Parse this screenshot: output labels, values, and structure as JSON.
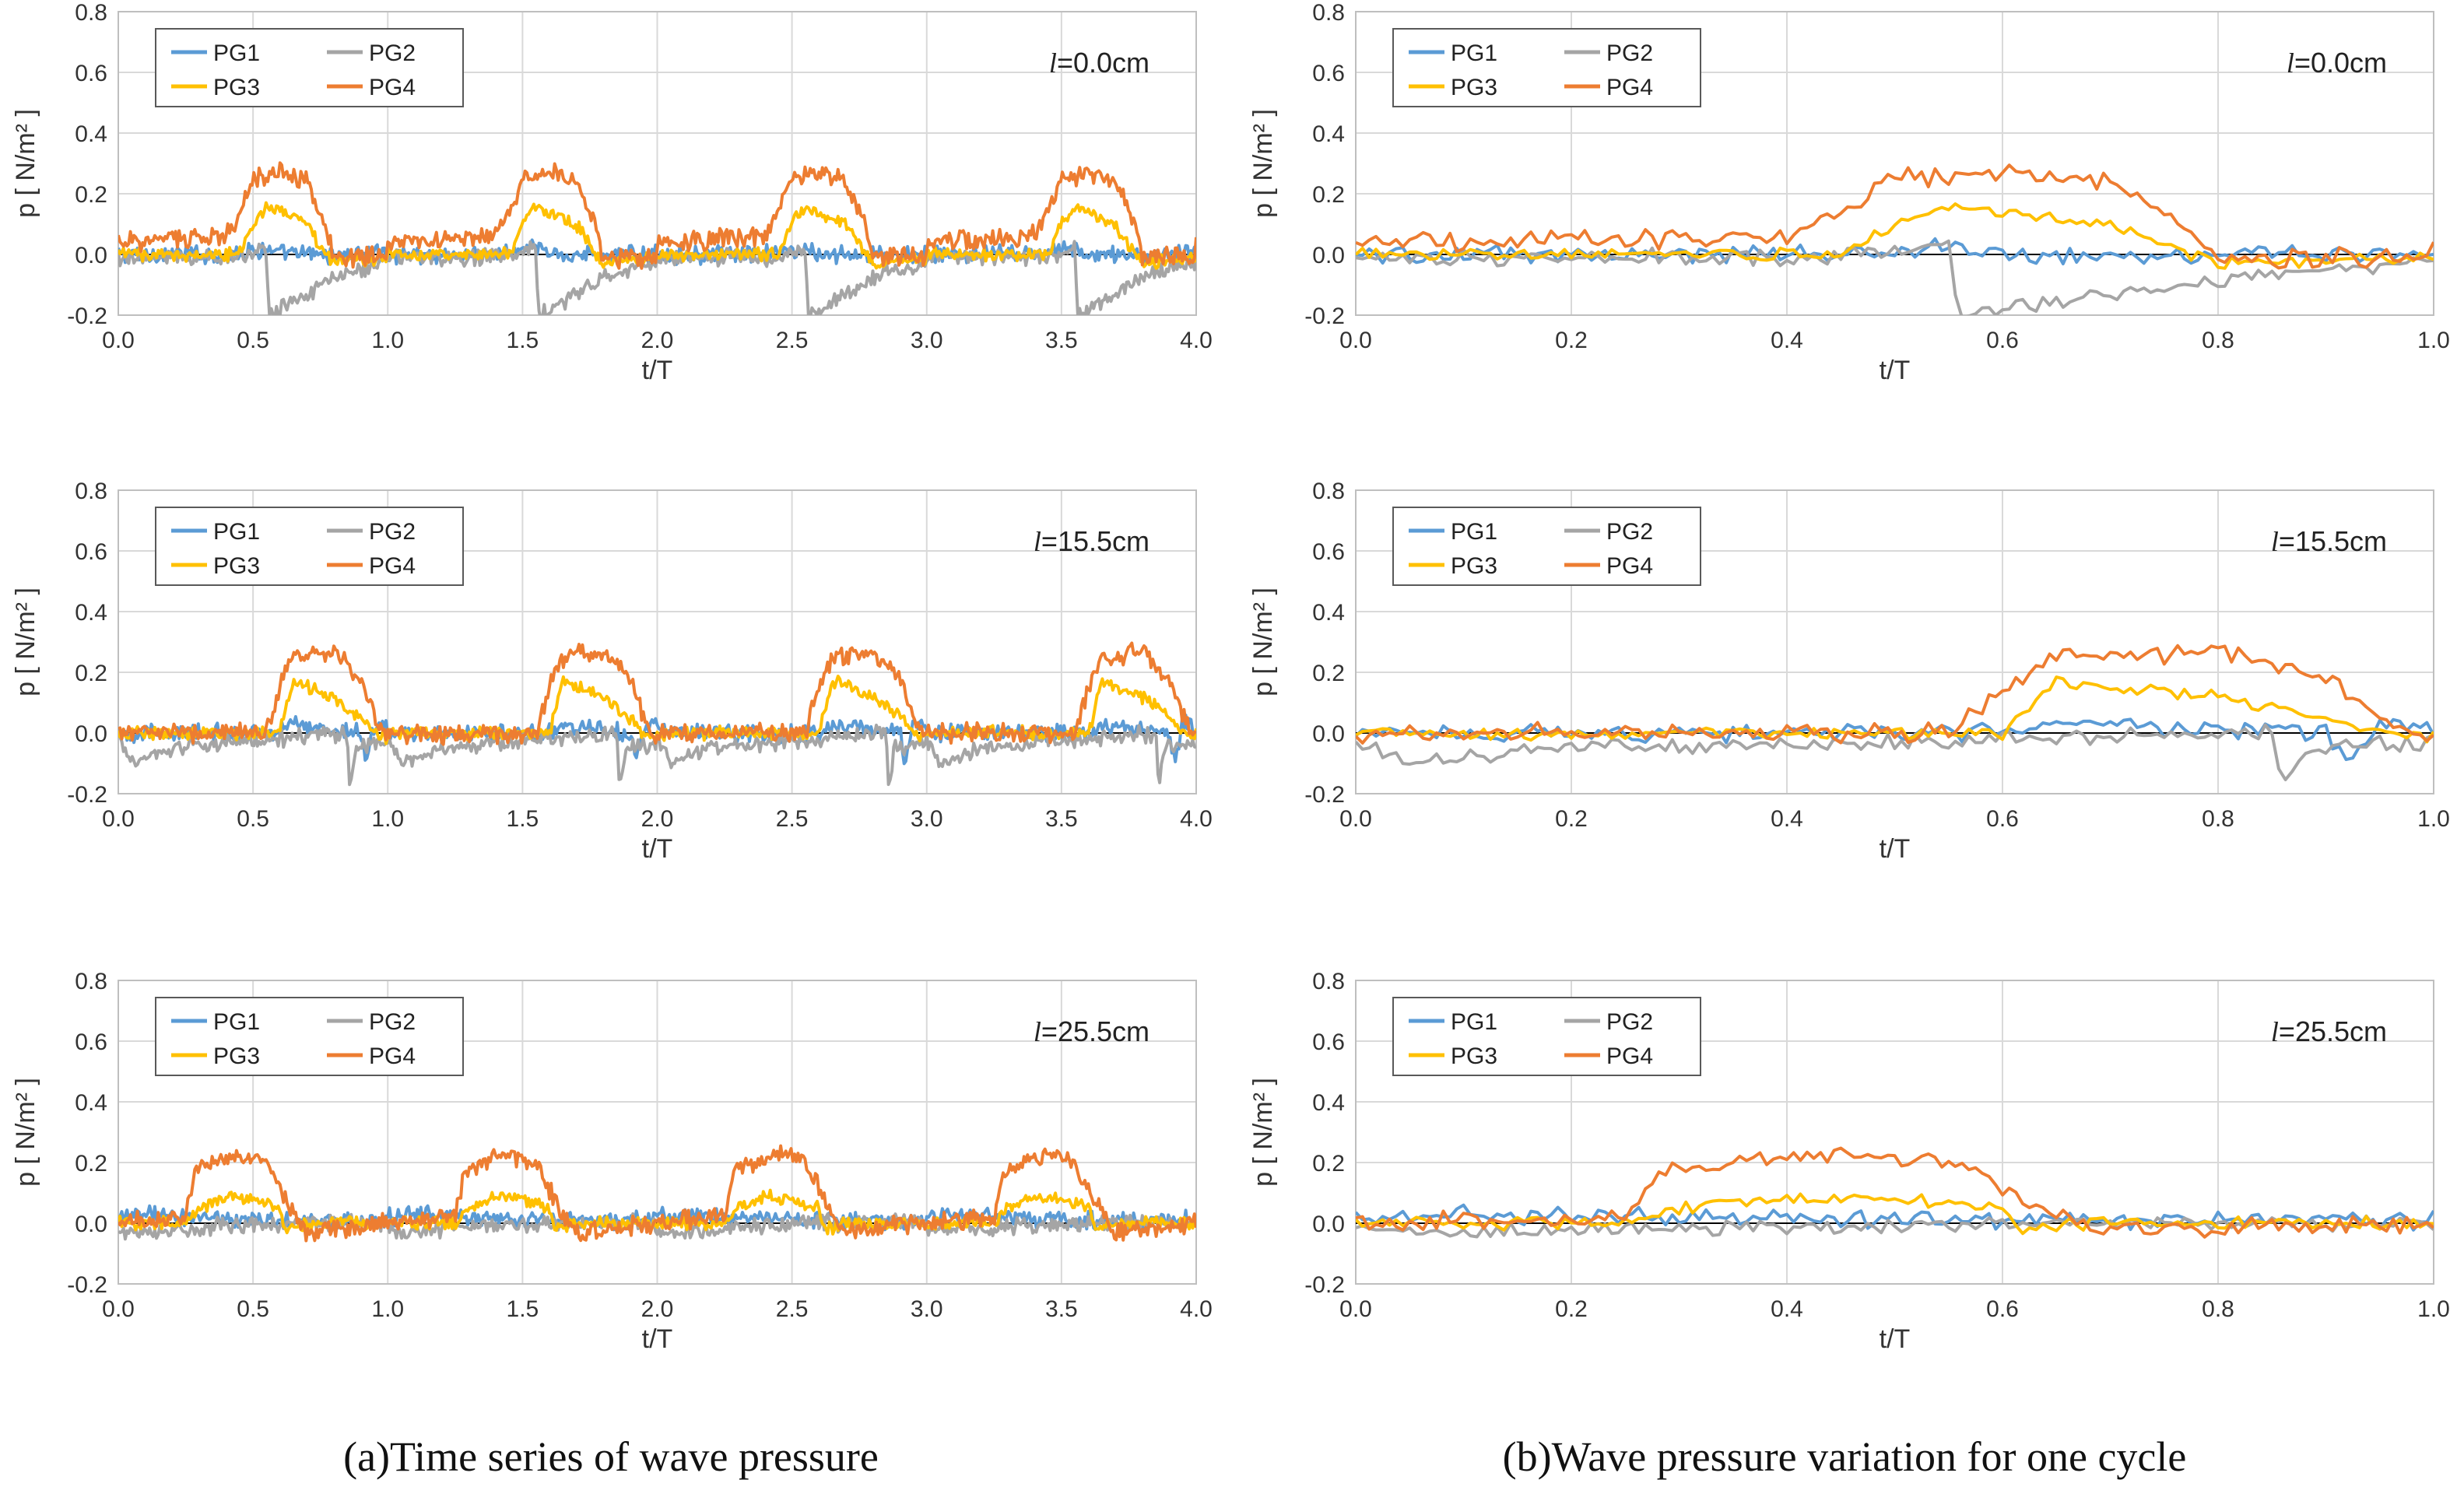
{
  "captions": {
    "left": "(a)Time series of wave pressure",
    "right": "(b)Wave pressure variation for one cycle"
  },
  "colors": {
    "PG1": "#5b9bd5",
    "PG2": "#a5a5a5",
    "PG3": "#ffc000",
    "PG4": "#ed7d31",
    "grid": "#d9d9d9",
    "zero_line": "#000000"
  },
  "chart_data": [
    {
      "type": "line",
      "column": "a",
      "row": 0,
      "annotation": {
        "var": "l",
        "value": "=0.0cm"
      },
      "xlabel": "t/T",
      "ylabel": "p [ N/m² ]",
      "xlim": [
        0,
        4
      ],
      "ylim": [
        -0.2,
        0.8
      ],
      "xticks": [
        "0.0",
        "0.5",
        "1.0",
        "1.5",
        "2.0",
        "2.5",
        "3.0",
        "3.5",
        "4.0"
      ],
      "yticks": [
        "-0.2",
        "0.0",
        "0.2",
        "0.4",
        "0.6",
        "0.8"
      ],
      "legend": {
        "placement": "top-left"
      },
      "grid": true,
      "period": 1,
      "series": [
        {
          "name": "PG1",
          "x": [
            0.0,
            0.2,
            0.4,
            0.55,
            0.6,
            0.8,
            1.0
          ],
          "y": [
            0.0,
            0.0,
            0.0,
            0.02,
            0.0,
            0.0,
            0.0
          ]
        },
        {
          "name": "PG2",
          "x": [
            0.0,
            0.45,
            0.55,
            0.56,
            0.6,
            0.8,
            1.0
          ],
          "y": [
            -0.01,
            -0.01,
            0.02,
            -0.2,
            -0.18,
            -0.08,
            -0.02
          ]
        },
        {
          "name": "PG3",
          "x": [
            0.0,
            0.45,
            0.5,
            0.55,
            0.7,
            0.75,
            0.8,
            1.0
          ],
          "y": [
            0.0,
            0.0,
            0.1,
            0.16,
            0.1,
            0.03,
            -0.03,
            -0.01
          ]
        },
        {
          "name": "PG4",
          "x": [
            0.0,
            0.4,
            0.45,
            0.5,
            0.6,
            0.7,
            0.77,
            0.8,
            1.0
          ],
          "y": [
            0.04,
            0.06,
            0.14,
            0.25,
            0.27,
            0.24,
            0.1,
            -0.01,
            -0.01
          ]
        }
      ]
    },
    {
      "type": "line",
      "column": "b",
      "row": 0,
      "annotation": {
        "var": "l",
        "value": "=0.0cm"
      },
      "xlabel": "t/T",
      "ylabel": "p [ N/m² ]",
      "xlim": [
        0,
        1
      ],
      "ylim": [
        -0.2,
        0.8
      ],
      "xticks": [
        "0.0",
        "0.2",
        "0.4",
        "0.6",
        "0.8",
        "1.0"
      ],
      "yticks": [
        "-0.2",
        "0.0",
        "0.2",
        "0.4",
        "0.6",
        "0.8"
      ],
      "legend": {
        "placement": "top-left"
      },
      "grid": true,
      "period": 1,
      "series": [
        {
          "name": "PG1",
          "x": [
            0.0,
            0.2,
            0.4,
            0.55,
            0.6,
            0.8,
            1.0
          ],
          "y": [
            0.0,
            0.0,
            0.0,
            0.02,
            0.0,
            0.0,
            0.0
          ]
        },
        {
          "name": "PG2",
          "x": [
            0.0,
            0.45,
            0.55,
            0.56,
            0.6,
            0.8,
            1.0
          ],
          "y": [
            -0.01,
            -0.01,
            0.02,
            -0.2,
            -0.18,
            -0.08,
            -0.02
          ]
        },
        {
          "name": "PG3",
          "x": [
            0.0,
            0.45,
            0.5,
            0.55,
            0.7,
            0.75,
            0.8,
            1.0
          ],
          "y": [
            0.0,
            0.0,
            0.1,
            0.16,
            0.1,
            0.03,
            -0.03,
            -0.01
          ]
        },
        {
          "name": "PG4",
          "x": [
            0.0,
            0.4,
            0.45,
            0.5,
            0.6,
            0.7,
            0.77,
            0.8,
            1.0
          ],
          "y": [
            0.04,
            0.06,
            0.14,
            0.25,
            0.27,
            0.24,
            0.1,
            -0.01,
            -0.01
          ]
        }
      ]
    },
    {
      "type": "line",
      "column": "a",
      "row": 1,
      "annotation": {
        "var": "l",
        "value": "=15.5cm"
      },
      "xlabel": "t/T",
      "ylabel": "p [ N/m² ]",
      "xlim": [
        0,
        4
      ],
      "ylim": [
        -0.2,
        0.8
      ],
      "xticks": [
        "0.0",
        "0.5",
        "1.0",
        "1.5",
        "2.0",
        "2.5",
        "3.0",
        "3.5",
        "4.0"
      ],
      "yticks": [
        "-0.2",
        "0.0",
        "0.2",
        "0.4",
        "0.6",
        "0.8"
      ],
      "legend": {
        "placement": "top-left"
      },
      "grid": true,
      "period": 1,
      "series": [
        {
          "name": "PG1",
          "x": [
            0.0,
            0.6,
            0.65,
            0.9,
            0.92,
            0.95,
            1.0
          ],
          "y": [
            0.0,
            0.0,
            0.03,
            0.0,
            -0.1,
            0.03,
            0.02
          ]
        },
        {
          "name": "PG2",
          "x": [
            0.0,
            0.05,
            0.2,
            0.6,
            0.85,
            0.86,
            0.88,
            1.0
          ],
          "y": [
            -0.02,
            -0.1,
            -0.05,
            -0.02,
            0.0,
            -0.18,
            -0.05,
            -0.03
          ]
        },
        {
          "name": "PG3",
          "x": [
            0.0,
            0.6,
            0.65,
            0.8,
            0.9,
            0.95,
            1.0
          ],
          "y": [
            0.0,
            0.0,
            0.17,
            0.12,
            0.05,
            0.0,
            -0.02
          ]
        },
        {
          "name": "PG4",
          "x": [
            0.0,
            0.55,
            0.6,
            0.65,
            0.8,
            0.9,
            0.95,
            1.0
          ],
          "y": [
            0.0,
            0.0,
            0.15,
            0.25,
            0.27,
            0.18,
            0.05,
            -0.02
          ]
        }
      ]
    },
    {
      "type": "line",
      "column": "b",
      "row": 1,
      "annotation": {
        "var": "l",
        "value": "=15.5cm"
      },
      "xlabel": "t/T",
      "ylabel": "p [ N/m² ]",
      "xlim": [
        0,
        1
      ],
      "ylim": [
        -0.2,
        0.8
      ],
      "xticks": [
        "0.0",
        "0.2",
        "0.4",
        "0.6",
        "0.8",
        "1.0"
      ],
      "yticks": [
        "-0.2",
        "0.0",
        "0.2",
        "0.4",
        "0.6",
        "0.8"
      ],
      "legend": {
        "placement": "top-left"
      },
      "grid": true,
      "period": 1,
      "series": [
        {
          "name": "PG1",
          "x": [
            0.0,
            0.6,
            0.65,
            0.9,
            0.92,
            0.95,
            1.0
          ],
          "y": [
            0.0,
            0.0,
            0.03,
            0.0,
            -0.1,
            0.03,
            0.02
          ]
        },
        {
          "name": "PG2",
          "x": [
            0.0,
            0.05,
            0.2,
            0.6,
            0.85,
            0.86,
            0.88,
            1.0
          ],
          "y": [
            -0.02,
            -0.1,
            -0.05,
            -0.02,
            0.0,
            -0.18,
            -0.05,
            -0.03
          ]
        },
        {
          "name": "PG3",
          "x": [
            0.0,
            0.6,
            0.65,
            0.8,
            0.9,
            0.95,
            1.0
          ],
          "y": [
            0.0,
            0.0,
            0.17,
            0.12,
            0.05,
            0.0,
            -0.02
          ]
        },
        {
          "name": "PG4",
          "x": [
            0.0,
            0.55,
            0.6,
            0.65,
            0.8,
            0.9,
            0.95,
            1.0
          ],
          "y": [
            0.0,
            0.0,
            0.15,
            0.25,
            0.27,
            0.18,
            0.05,
            -0.02
          ]
        }
      ]
    },
    {
      "type": "line",
      "column": "a",
      "row": 2,
      "annotation": {
        "var": "l",
        "value": "=25.5cm"
      },
      "xlabel": "t/T",
      "ylabel": "p [ N/m² ]",
      "xlim": [
        0,
        4
      ],
      "ylim": [
        -0.2,
        0.8
      ],
      "xticks": [
        "0.0",
        "0.5",
        "1.0",
        "1.5",
        "2.0",
        "2.5",
        "3.0",
        "3.5",
        "4.0"
      ],
      "yticks": [
        "-0.2",
        "0.0",
        "0.2",
        "0.4",
        "0.6",
        "0.8"
      ],
      "legend": {
        "placement": "top-left"
      },
      "grid": true,
      "period": 1,
      "series": [
        {
          "name": "PG1",
          "x": [
            0.0,
            0.1,
            0.3,
            0.5,
            0.7,
            1.0
          ],
          "y": [
            0.02,
            0.03,
            0.02,
            0.01,
            0.01,
            0.01
          ]
        },
        {
          "name": "PG2",
          "x": [
            0.0,
            0.2,
            0.4,
            0.6,
            0.8,
            1.0
          ],
          "y": [
            -0.03,
            -0.02,
            -0.01,
            0.0,
            0.0,
            0.0
          ]
        },
        {
          "name": "PG3",
          "x": [
            0.0,
            0.25,
            0.3,
            0.4,
            0.5,
            0.6,
            0.62,
            0.7,
            1.0
          ],
          "y": [
            0.0,
            0.0,
            0.05,
            0.09,
            0.08,
            0.05,
            -0.02,
            0.0,
            0.0
          ]
        },
        {
          "name": "PG4",
          "x": [
            0.0,
            0.25,
            0.28,
            0.3,
            0.45,
            0.55,
            0.65,
            0.7,
            0.8,
            1.0
          ],
          "y": [
            0.0,
            0.02,
            0.15,
            0.18,
            0.23,
            0.2,
            0.03,
            -0.03,
            -0.02,
            0.0
          ]
        }
      ]
    },
    {
      "type": "line",
      "column": "b",
      "row": 2,
      "annotation": {
        "var": "l",
        "value": "=25.5cm"
      },
      "xlabel": "t/T",
      "ylabel": "p [ N/m² ]",
      "xlim": [
        0,
        1
      ],
      "ylim": [
        -0.2,
        0.8
      ],
      "xticks": [
        "0.0",
        "0.2",
        "0.4",
        "0.6",
        "0.8",
        "1.0"
      ],
      "yticks": [
        "-0.2",
        "0.0",
        "0.2",
        "0.4",
        "0.6",
        "0.8"
      ],
      "legend": {
        "placement": "top-left"
      },
      "grid": true,
      "period": 1,
      "series": [
        {
          "name": "PG1",
          "x": [
            0.0,
            0.1,
            0.3,
            0.5,
            0.7,
            1.0
          ],
          "y": [
            0.02,
            0.03,
            0.02,
            0.01,
            0.01,
            0.01
          ]
        },
        {
          "name": "PG2",
          "x": [
            0.0,
            0.2,
            0.4,
            0.6,
            0.8,
            1.0
          ],
          "y": [
            -0.03,
            -0.02,
            -0.01,
            0.0,
            0.0,
            0.0
          ]
        },
        {
          "name": "PG3",
          "x": [
            0.0,
            0.25,
            0.3,
            0.4,
            0.5,
            0.6,
            0.62,
            0.7,
            1.0
          ],
          "y": [
            0.0,
            0.0,
            0.05,
            0.09,
            0.08,
            0.05,
            -0.02,
            0.0,
            0.0
          ]
        },
        {
          "name": "PG4",
          "x": [
            0.0,
            0.25,
            0.28,
            0.3,
            0.45,
            0.55,
            0.65,
            0.7,
            0.8,
            1.0
          ],
          "y": [
            0.0,
            0.02,
            0.15,
            0.18,
            0.23,
            0.2,
            0.03,
            -0.03,
            -0.02,
            0.0
          ]
        }
      ]
    }
  ]
}
